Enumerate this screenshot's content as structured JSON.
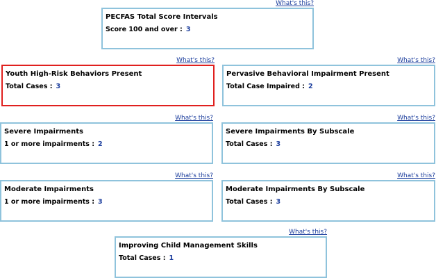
{
  "whats_this": "What's this?",
  "colors": {
    "border": "#8fc3dc",
    "alert_border": "#e0201e",
    "link": "#1a3c9c"
  },
  "widgets": [
    {
      "title": "PECFAS Total Score Intervals",
      "label": "Score 100 and over :",
      "value": "3"
    },
    {
      "title": "Youth High-Risk Behaviors Present",
      "label": "Total Cases :",
      "value": "3",
      "alert": true
    },
    {
      "title": "Pervasive Behavioral Impairment Present",
      "label": "Total Case Impaired :",
      "value": "2"
    },
    {
      "title": "Severe Impairments",
      "label": "1 or more impairments :",
      "value": "2"
    },
    {
      "title": "Severe Impairments By Subscale",
      "label": "Total Cases :",
      "value": "3"
    },
    {
      "title": "Moderate Impairments",
      "label": "1 or more impairments :",
      "value": "3"
    },
    {
      "title": "Moderate Impairments By Subscale",
      "label": "Total Cases :",
      "value": "3"
    },
    {
      "title": "Improving Child Management Skills",
      "label": "Total Cases :",
      "value": "1"
    }
  ]
}
